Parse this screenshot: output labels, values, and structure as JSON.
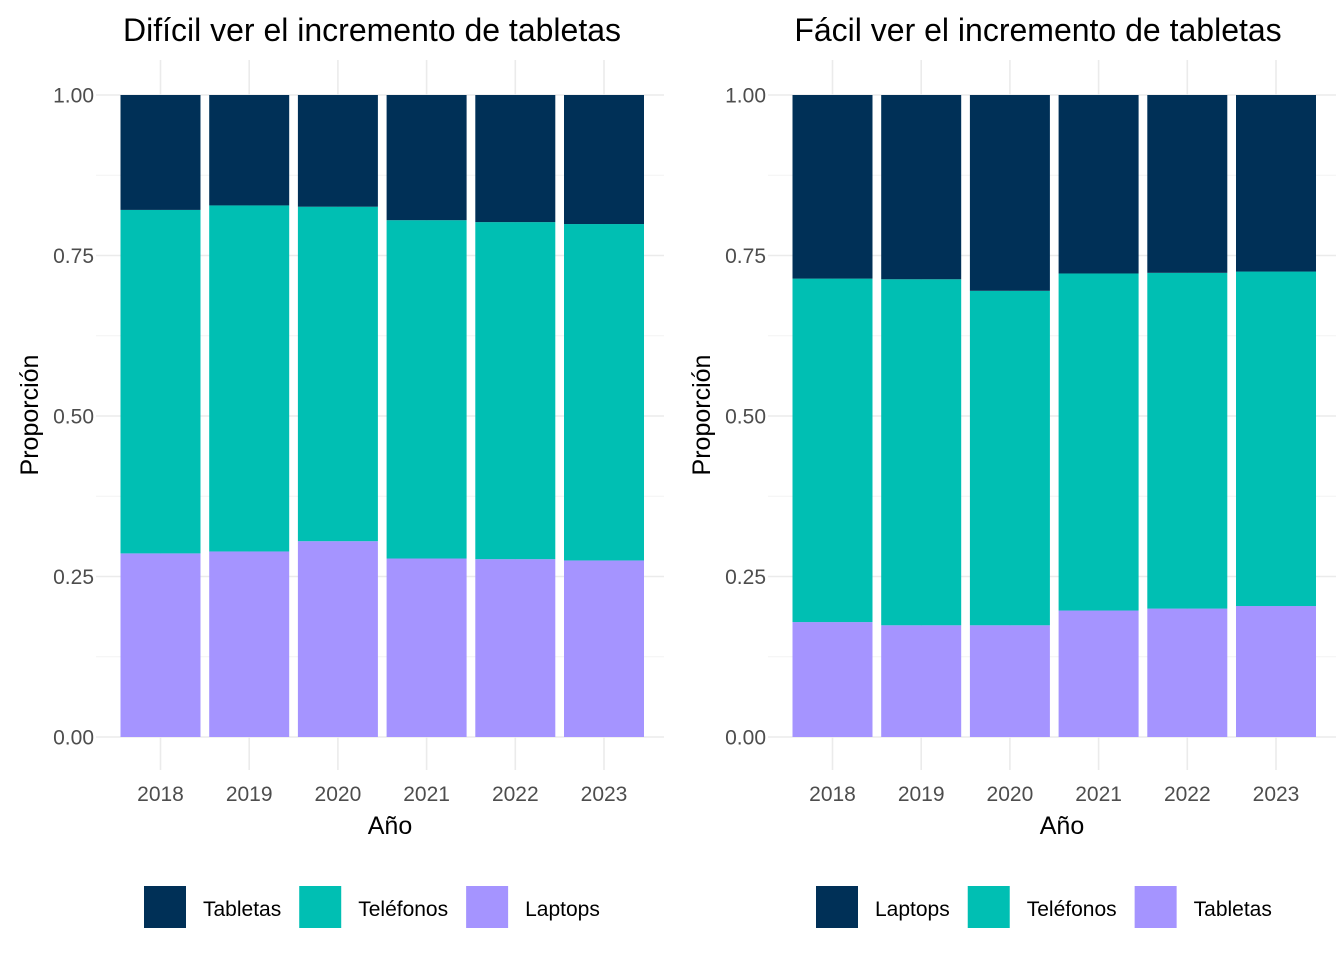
{
  "colors": {
    "dark": "#003057",
    "teal": "#00BFB3",
    "lavender": "#A594FF",
    "grid": "#EBEBEB",
    "tick_text": "#4D4D4D"
  },
  "chart_data": [
    {
      "type": "bar",
      "stacked": true,
      "title": "Difícil ver el incremento de tabletas",
      "xlabel": "Año",
      "ylabel": "Proporción",
      "categories": [
        "2018",
        "2019",
        "2020",
        "2021",
        "2022",
        "2023"
      ],
      "ylim": [
        0,
        1
      ],
      "yticks": [
        "0.00",
        "0.25",
        "0.50",
        "0.75",
        "1.00"
      ],
      "grid": true,
      "legend_position": "bottom",
      "series": [
        {
          "name": "Laptops",
          "color": "#A594FF",
          "values": [
            0.286,
            0.289,
            0.305,
            0.278,
            0.277,
            0.275
          ]
        },
        {
          "name": "Teléfonos",
          "color": "#00BFB3",
          "values": [
            0.535,
            0.539,
            0.521,
            0.527,
            0.525,
            0.524
          ]
        },
        {
          "name": "Tabletas",
          "color": "#003057",
          "values": [
            0.179,
            0.172,
            0.174,
            0.195,
            0.198,
            0.201
          ]
        }
      ],
      "legend": [
        "Tabletas",
        "Teléfonos",
        "Laptops"
      ]
    },
    {
      "type": "bar",
      "stacked": true,
      "title": "Fácil ver el incremento de tabletas",
      "xlabel": "Año",
      "ylabel": "Proporción",
      "categories": [
        "2018",
        "2019",
        "2020",
        "2021",
        "2022",
        "2023"
      ],
      "ylim": [
        0,
        1
      ],
      "yticks": [
        "0.00",
        "0.25",
        "0.50",
        "0.75",
        "1.00"
      ],
      "grid": true,
      "legend_position": "bottom",
      "series": [
        {
          "name": "Tabletas",
          "color": "#A594FF",
          "values": [
            0.179,
            0.174,
            0.174,
            0.197,
            0.2,
            0.204
          ]
        },
        {
          "name": "Teléfonos",
          "color": "#00BFB3",
          "values": [
            0.535,
            0.539,
            0.521,
            0.525,
            0.523,
            0.521
          ]
        },
        {
          "name": "Laptops",
          "color": "#003057",
          "values": [
            0.286,
            0.287,
            0.305,
            0.278,
            0.277,
            0.275
          ]
        }
      ],
      "legend": [
        "Laptops",
        "Teléfonos",
        "Tabletas"
      ]
    }
  ]
}
